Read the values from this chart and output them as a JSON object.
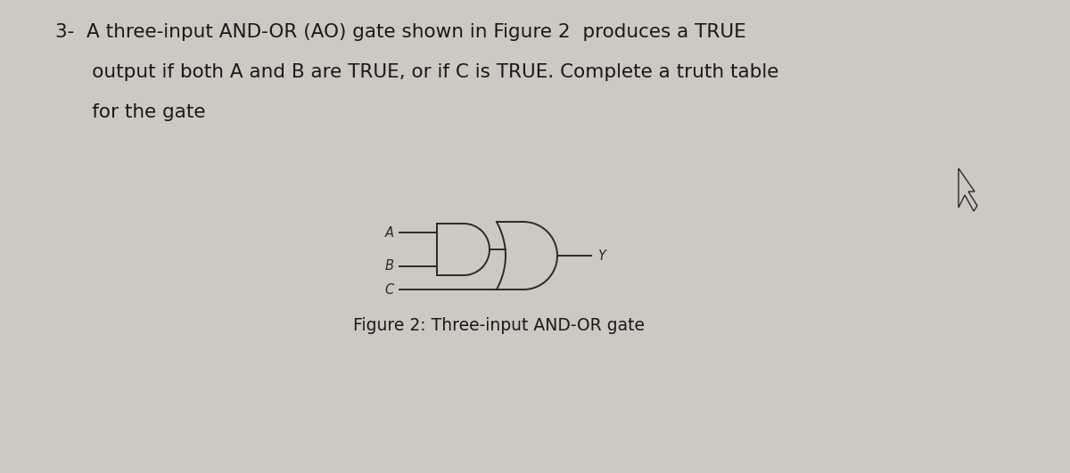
{
  "background_color": "#cdc8c2",
  "text_line1": "3-  A three-input AND-OR (AO) gate shown in Figure 2  produces a TRUE",
  "text_line2": "      output if both A and B are TRUE, or if C is TRUE. Complete a truth table",
  "text_line3": "      for the gate",
  "figure_caption": "Figure 2: Three-input AND-OR gate",
  "label_A": "A",
  "label_B": "B",
  "label_C": "C",
  "label_Y": "Y",
  "gate_color": "#2a2a2a",
  "text_color": "#1a1a1a",
  "font_size_main": 15.5,
  "font_size_caption": 13.5,
  "font_size_labels": 10.5
}
